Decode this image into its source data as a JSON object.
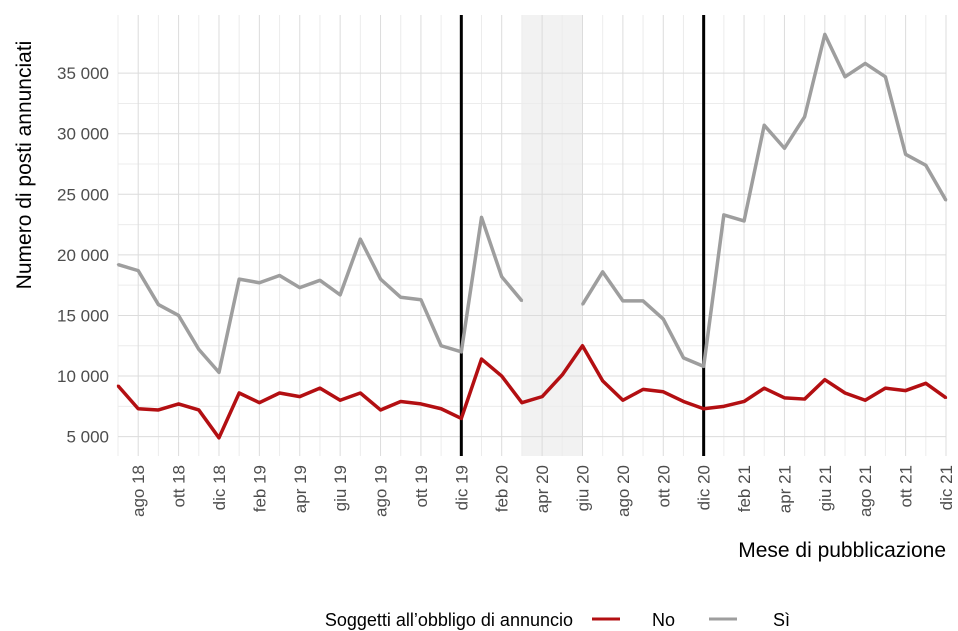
{
  "chart_data": {
    "type": "line",
    "xlabel": "Mese di pubblicazione",
    "ylabel": "Numero di posti annunciati",
    "x": [
      "lug 18",
      "ago 18",
      "set 18",
      "ott 18",
      "nov 18",
      "dic 18",
      "gen 19",
      "feb 19",
      "mar 19",
      "apr 19",
      "mag 19",
      "giu 19",
      "lug 19",
      "ago 19",
      "set 19",
      "ott 19",
      "nov 19",
      "dic 19",
      "gen 20",
      "feb 20",
      "mar 20",
      "apr 20",
      "mag 20",
      "giu 20",
      "lug 20",
      "ago 20",
      "set 20",
      "ott 20",
      "nov 20",
      "dic 20",
      "gen 21",
      "feb 21",
      "mar 21",
      "apr 21",
      "mag 21",
      "giu 21",
      "lug 21",
      "ago 21",
      "set 21",
      "ott 21",
      "nov 21",
      "dic 21"
    ],
    "x_tick_labels": [
      "ago 18",
      "ott 18",
      "dic 18",
      "feb 19",
      "apr 19",
      "giu 19",
      "ago 19",
      "ott 19",
      "dic 19",
      "feb 20",
      "apr 20",
      "giu 20",
      "ago 20",
      "ott 20",
      "dic 20",
      "feb 21",
      "apr 21",
      "giu 21",
      "ago 21",
      "ott 21",
      "dic 21"
    ],
    "y_ticks": [
      5000,
      10000,
      15000,
      20000,
      25000,
      30000,
      35000
    ],
    "y_tick_labels": [
      "5 000",
      "10 000",
      "15 000",
      "20 000",
      "25 000",
      "30 000",
      "35 000"
    ],
    "ylim": [
      3400,
      39800
    ],
    "vertical_lines": [
      "dic 19",
      "dic 20"
    ],
    "shaded_range": [
      "mar 20",
      "giu 20"
    ],
    "grid": true,
    "legend": {
      "title": "Soggetti all’obbligo di annuncio",
      "position": "bottom"
    },
    "series": [
      {
        "name": "No",
        "color": "#b30f12",
        "values": [
          9200,
          7300,
          7200,
          7700,
          7200,
          4900,
          8600,
          7800,
          8600,
          8300,
          9000,
          8000,
          8600,
          7200,
          7900,
          7700,
          7300,
          6500,
          11400,
          10000,
          7800,
          8300,
          10100,
          12500,
          9600,
          8000,
          8900,
          8700,
          7900,
          7300,
          7500,
          7900,
          9000,
          8200,
          8100,
          9700,
          8600,
          8000,
          9000,
          8800,
          9400,
          8200
        ]
      },
      {
        "name": "Sì",
        "color": "#9e9e9e",
        "values": [
          19200,
          18700,
          15900,
          15000,
          12200,
          10300,
          18000,
          17700,
          18300,
          17300,
          17900,
          16700,
          21300,
          18000,
          16500,
          16300,
          12500,
          12000,
          23100,
          18200,
          16200,
          null,
          null,
          15900,
          18600,
          16200,
          16200,
          14700,
          11500,
          10800,
          23300,
          22800,
          30700,
          28800,
          31400,
          38200,
          34700,
          35800,
          34700,
          28300,
          27400,
          24500
        ]
      }
    ]
  }
}
